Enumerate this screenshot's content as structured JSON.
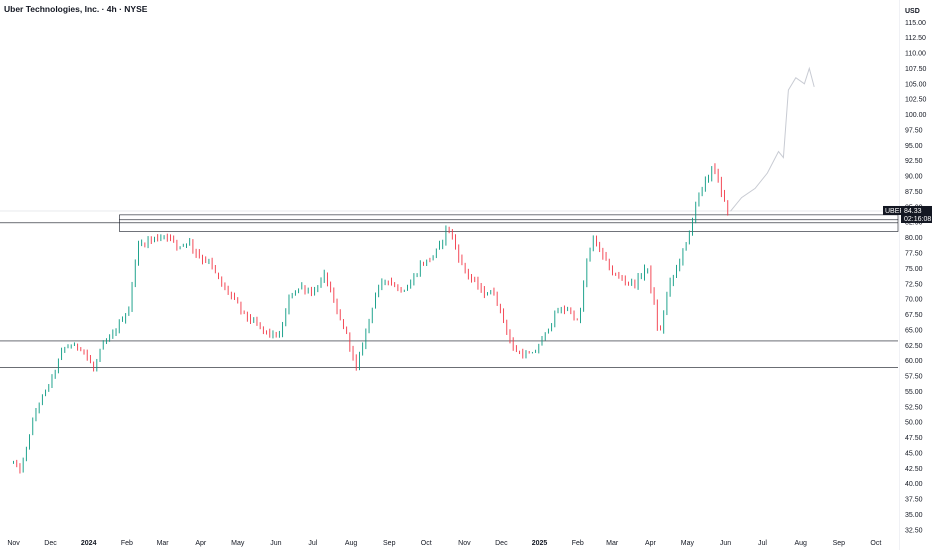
{
  "header": {
    "title": "Uber Technologies, Inc. · 4h · NYSE"
  },
  "colors": {
    "up": "#089981",
    "down": "#f23645",
    "projection": "#c8cbd3",
    "axis_bg": "#ffffff",
    "label_bg": "#131722"
  },
  "chart_data": {
    "type": "candlestick",
    "currency": "USD",
    "ylim": [
      31.5,
      117
    ],
    "y_ticks": [
      32.5,
      35.0,
      37.5,
      40.0,
      42.5,
      45.0,
      47.5,
      50.0,
      52.5,
      55.0,
      57.5,
      60.0,
      62.5,
      65.0,
      67.5,
      70.0,
      72.5,
      75.0,
      77.5,
      80.0,
      82.5,
      85.0,
      87.5,
      90.0,
      92.5,
      95.0,
      97.5,
      100.0,
      102.5,
      105.0,
      107.5,
      110.0,
      112.5,
      115.0
    ],
    "x_ticks": [
      {
        "label": "Nov",
        "bold": false
      },
      {
        "label": "Dec",
        "bold": false
      },
      {
        "label": "2024",
        "bold": true
      },
      {
        "label": "Feb",
        "bold": false
      },
      {
        "label": "Mar",
        "bold": false
      },
      {
        "label": "Apr",
        "bold": false
      },
      {
        "label": "May",
        "bold": false
      },
      {
        "label": "Jun",
        "bold": false
      },
      {
        "label": "Jul",
        "bold": false
      },
      {
        "label": "Aug",
        "bold": false
      },
      {
        "label": "Sep",
        "bold": false
      },
      {
        "label": "Oct",
        "bold": false
      },
      {
        "label": "Nov",
        "bold": false
      },
      {
        "label": "Dec",
        "bold": false
      },
      {
        "label": "2025",
        "bold": true
      },
      {
        "label": "Feb",
        "bold": false
      },
      {
        "label": "Mar",
        "bold": false
      },
      {
        "label": "Apr",
        "bold": false
      },
      {
        "label": "May",
        "bold": false
      },
      {
        "label": "Jun",
        "bold": false
      },
      {
        "label": "Jul",
        "bold": false
      },
      {
        "label": "Aug",
        "bold": false
      },
      {
        "label": "Sep",
        "bold": false
      },
      {
        "label": "Oct",
        "bold": false
      }
    ],
    "price_path": [
      [
        "2023-11-01",
        43.5
      ],
      [
        "2023-11-06",
        42.0
      ],
      [
        "2023-11-10",
        44.5
      ],
      [
        "2023-11-15",
        49.0
      ],
      [
        "2023-11-20",
        52.5
      ],
      [
        "2023-11-27",
        55.0
      ],
      [
        "2023-12-04",
        58.0
      ],
      [
        "2023-12-11",
        62.0
      ],
      [
        "2023-12-18",
        62.5
      ],
      [
        "2023-12-27",
        62.0
      ],
      [
        "2024-01-05",
        58.5
      ],
      [
        "2024-01-12",
        62.5
      ],
      [
        "2024-01-20",
        64.0
      ],
      [
        "2024-01-27",
        66.5
      ],
      [
        "2024-02-03",
        68.5
      ],
      [
        "2024-02-08",
        77.0
      ],
      [
        "2024-02-10",
        78.5
      ],
      [
        "2024-02-17",
        79.5
      ],
      [
        "2024-02-26",
        80.0
      ],
      [
        "2024-03-05",
        80.5
      ],
      [
        "2024-03-13",
        78.5
      ],
      [
        "2024-03-22",
        79.5
      ],
      [
        "2024-03-30",
        77.0
      ],
      [
        "2024-04-08",
        76.0
      ],
      [
        "2024-04-17",
        72.5
      ],
      [
        "2024-04-26",
        70.5
      ],
      [
        "2024-05-06",
        67.5
      ],
      [
        "2024-05-15",
        66.0
      ],
      [
        "2024-05-24",
        64.5
      ],
      [
        "2024-06-04",
        64.0
      ],
      [
        "2024-06-13",
        71.0
      ],
      [
        "2024-06-22",
        72.0
      ],
      [
        "2024-07-01",
        71.0
      ],
      [
        "2024-07-11",
        74.0
      ],
      [
        "2024-07-20",
        68.0
      ],
      [
        "2024-07-29",
        64.0
      ],
      [
        "2024-08-05",
        58.5
      ],
      [
        "2024-08-12",
        64.0
      ],
      [
        "2024-08-21",
        71.0
      ],
      [
        "2024-08-30",
        73.5
      ],
      [
        "2024-09-09",
        71.5
      ],
      [
        "2024-09-17",
        72.0
      ],
      [
        "2024-09-26",
        75.5
      ],
      [
        "2024-10-04",
        76.5
      ],
      [
        "2024-10-12",
        78.5
      ],
      [
        "2024-10-18",
        82.0
      ],
      [
        "2024-10-23",
        79.5
      ],
      [
        "2024-10-31",
        75.0
      ],
      [
        "2024-11-08",
        73.0
      ],
      [
        "2024-11-16",
        71.0
      ],
      [
        "2024-11-25",
        71.0
      ],
      [
        "2024-12-02",
        67.0
      ],
      [
        "2024-12-10",
        62.0
      ],
      [
        "2024-12-18",
        61.0
      ],
      [
        "2024-12-27",
        61.0
      ],
      [
        "2025-01-06",
        64.5
      ],
      [
        "2025-01-15",
        68.0
      ],
      [
        "2025-01-24",
        68.5
      ],
      [
        "2025-02-02",
        66.0
      ],
      [
        "2025-02-08",
        76.0
      ],
      [
        "2025-02-14",
        80.0
      ],
      [
        "2025-02-21",
        77.0
      ],
      [
        "2025-03-02",
        74.0
      ],
      [
        "2025-03-11",
        73.0
      ],
      [
        "2025-03-20",
        72.5
      ],
      [
        "2025-03-29",
        75.5
      ],
      [
        "2025-04-04",
        69.0
      ],
      [
        "2025-04-08",
        63.5
      ],
      [
        "2025-04-15",
        71.5
      ],
      [
        "2025-04-24",
        76.0
      ],
      [
        "2025-05-02",
        80.0
      ],
      [
        "2025-05-08",
        86.0
      ],
      [
        "2025-05-15",
        88.5
      ],
      [
        "2025-05-22",
        92.0
      ],
      [
        "2025-05-28",
        87.5
      ],
      [
        "2025-06-03",
        84.0
      ],
      [
        "2025-06-05",
        84.3
      ]
    ],
    "projection": [
      [
        "2025-06-05",
        84.3
      ],
      [
        "2025-06-14",
        86.5
      ],
      [
        "2025-06-25",
        88.0
      ],
      [
        "2025-07-05",
        90.5
      ],
      [
        "2025-07-14",
        94.0
      ],
      [
        "2025-07-18",
        93.0
      ],
      [
        "2025-07-22",
        104.0
      ],
      [
        "2025-07-28",
        106.0
      ],
      [
        "2025-08-04",
        105.0
      ],
      [
        "2025-08-08",
        107.5
      ],
      [
        "2025-08-12",
        104.5
      ]
    ],
    "zones": [
      {
        "start": "2024-01-26",
        "end": "2026-12-31",
        "top": 83.7,
        "bottom": 82.9,
        "fill": "#ffffff"
      },
      {
        "start": "2024-01-26",
        "end": "2026-12-31",
        "top": 82.9,
        "bottom": 81.0,
        "fill": "#ffffff"
      }
    ],
    "hlines": [
      82.4,
      63.2,
      58.9
    ],
    "last_price": {
      "symbol": "UBER",
      "price": "84.33",
      "countdown": "02:16:08",
      "value": 84.33
    }
  }
}
